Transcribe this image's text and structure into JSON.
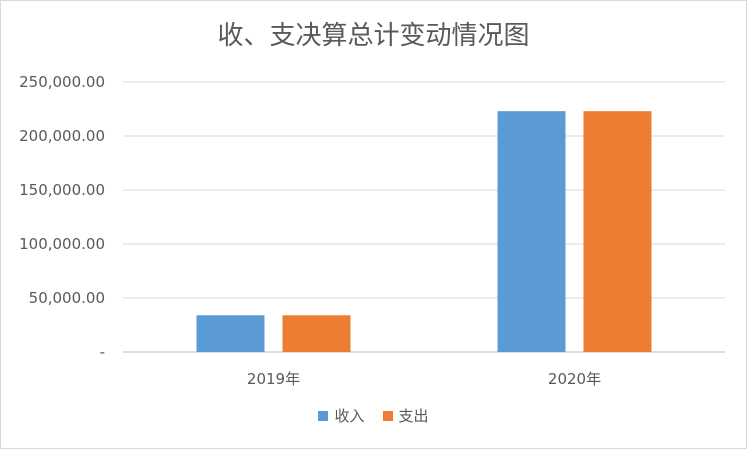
{
  "chart_data": {
    "type": "bar",
    "title": "收、支决算总计变动情况图",
    "xlabel": "",
    "ylabel": "",
    "categories": [
      "2019年",
      "2020年"
    ],
    "series": [
      {
        "name": "收入",
        "color": "#5b9bd5",
        "values": [
          34000,
          223000
        ]
      },
      {
        "name": "支出",
        "color": "#ed7d31",
        "values": [
          34000,
          223000
        ]
      }
    ],
    "ylim": [
      0,
      250000
    ],
    "yticks": [
      0,
      50000,
      100000,
      150000,
      200000,
      250000
    ],
    "ytick_labels": [
      "-",
      "50,000.00",
      "100,000.00",
      "150,000.00",
      "200,000.00",
      "250,000.00"
    ],
    "grid": true,
    "legend": "bottom-center"
  }
}
